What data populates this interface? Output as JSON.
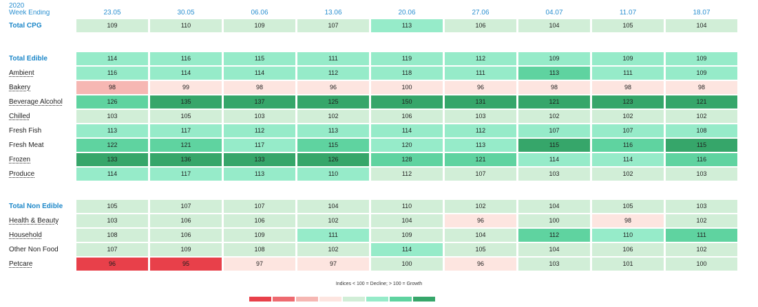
{
  "year_label": "2020",
  "week_label": "Week Ending",
  "note": "Indices < 100 = Decline; > 100 = Growth",
  "legend_colors": [
    "#e8404a",
    "#ee6a70",
    "#f6b7b3",
    "#fde5e0",
    "#d1eed7",
    "#96ebc9",
    "#5fd3a0",
    "#36a66a"
  ],
  "chart_data": {
    "type": "heatmap",
    "title": "",
    "x": [
      "23.05",
      "30.05",
      "06.06",
      "13.06",
      "20.06",
      "27.06",
      "04.07",
      "11.07",
      "18.07"
    ],
    "rows": [
      {
        "label": "Total CPG",
        "style": "total",
        "values": [
          109,
          110,
          109,
          107,
          113,
          106,
          104,
          105,
          104
        ]
      },
      {
        "label": "Total Edible",
        "style": "total",
        "values": [
          114,
          116,
          115,
          111,
          119,
          112,
          109,
          109,
          109
        ]
      },
      {
        "label": "Ambient",
        "style": "sub",
        "values": [
          116,
          114,
          114,
          112,
          118,
          111,
          113,
          111,
          109
        ]
      },
      {
        "label": "Bakery",
        "style": "sub",
        "values": [
          98,
          99,
          98,
          96,
          100,
          96,
          98,
          98,
          98
        ]
      },
      {
        "label": "Beverage Alcohol",
        "style": "sub",
        "values": [
          126,
          135,
          137,
          125,
          150,
          131,
          121,
          123,
          121
        ]
      },
      {
        "label": "Chilled",
        "style": "sub",
        "values": [
          103,
          105,
          103,
          102,
          106,
          103,
          102,
          102,
          102
        ]
      },
      {
        "label": "Fresh Fish",
        "style": "plain",
        "values": [
          113,
          117,
          112,
          113,
          114,
          112,
          107,
          107,
          108
        ]
      },
      {
        "label": "Fresh Meat",
        "style": "plain",
        "values": [
          122,
          121,
          117,
          115,
          120,
          113,
          115,
          116,
          115
        ]
      },
      {
        "label": "Frozen",
        "style": "sub",
        "values": [
          133,
          136,
          133,
          126,
          128,
          121,
          114,
          114,
          116
        ]
      },
      {
        "label": "Produce",
        "style": "sub",
        "values": [
          114,
          117,
          113,
          110,
          112,
          107,
          103,
          102,
          103
        ]
      },
      {
        "label": "Total Non Edible",
        "style": "total",
        "values": [
          105,
          107,
          107,
          104,
          110,
          102,
          104,
          105,
          103
        ]
      },
      {
        "label": "Health & Beauty",
        "style": "sub",
        "values": [
          103,
          106,
          106,
          102,
          104,
          96,
          100,
          98,
          102
        ]
      },
      {
        "label": "Household",
        "style": "sub",
        "values": [
          108,
          106,
          109,
          111,
          109,
          104,
          112,
          110,
          111
        ]
      },
      {
        "label": "Other Non Food",
        "style": "plain",
        "values": [
          107,
          109,
          108,
          102,
          114,
          105,
          104,
          106,
          102
        ]
      },
      {
        "label": "Petcare",
        "style": "sub",
        "values": [
          96,
          95,
          97,
          97,
          100,
          96,
          103,
          101,
          100
        ]
      }
    ],
    "cell_colors": [
      [
        "#d1eed7",
        "#d1eed7",
        "#d1eed7",
        "#d1eed7",
        "#96ebc9",
        "#d1eed7",
        "#d1eed7",
        "#d1eed7",
        "#d1eed7"
      ],
      [
        "#96ebc9",
        "#96ebc9",
        "#96ebc9",
        "#96ebc9",
        "#96ebc9",
        "#96ebc9",
        "#96ebc9",
        "#96ebc9",
        "#96ebc9"
      ],
      [
        "#96ebc9",
        "#96ebc9",
        "#96ebc9",
        "#96ebc9",
        "#96ebc9",
        "#96ebc9",
        "#5fd3a0",
        "#96ebc9",
        "#96ebc9"
      ],
      [
        "#f6b7b3",
        "#fde5e0",
        "#fde5e0",
        "#fde5e0",
        "#fde5e0",
        "#fde5e0",
        "#fde5e0",
        "#fde5e0",
        "#fde5e0"
      ],
      [
        "#5fd3a0",
        "#36a66a",
        "#36a66a",
        "#36a66a",
        "#36a66a",
        "#36a66a",
        "#36a66a",
        "#36a66a",
        "#36a66a"
      ],
      [
        "#d1eed7",
        "#d1eed7",
        "#d1eed7",
        "#d1eed7",
        "#d1eed7",
        "#d1eed7",
        "#d1eed7",
        "#d1eed7",
        "#d1eed7"
      ],
      [
        "#96ebc9",
        "#96ebc9",
        "#96ebc9",
        "#96ebc9",
        "#96ebc9",
        "#96ebc9",
        "#96ebc9",
        "#96ebc9",
        "#96ebc9"
      ],
      [
        "#5fd3a0",
        "#5fd3a0",
        "#96ebc9",
        "#5fd3a0",
        "#96ebc9",
        "#96ebc9",
        "#36a66a",
        "#5fd3a0",
        "#36a66a"
      ],
      [
        "#36a66a",
        "#36a66a",
        "#36a66a",
        "#36a66a",
        "#5fd3a0",
        "#5fd3a0",
        "#96ebc9",
        "#96ebc9",
        "#5fd3a0"
      ],
      [
        "#96ebc9",
        "#96ebc9",
        "#96ebc9",
        "#96ebc9",
        "#d1eed7",
        "#d1eed7",
        "#d1eed7",
        "#d1eed7",
        "#d1eed7"
      ],
      [
        "#d1eed7",
        "#d1eed7",
        "#d1eed7",
        "#d1eed7",
        "#d1eed7",
        "#d1eed7",
        "#d1eed7",
        "#d1eed7",
        "#d1eed7"
      ],
      [
        "#d1eed7",
        "#d1eed7",
        "#d1eed7",
        "#d1eed7",
        "#d1eed7",
        "#fde5e0",
        "#d1eed7",
        "#fde5e0",
        "#d1eed7"
      ],
      [
        "#d1eed7",
        "#d1eed7",
        "#d1eed7",
        "#96ebc9",
        "#d1eed7",
        "#d1eed7",
        "#5fd3a0",
        "#96ebc9",
        "#5fd3a0"
      ],
      [
        "#d1eed7",
        "#d1eed7",
        "#d1eed7",
        "#d1eed7",
        "#96ebc9",
        "#d1eed7",
        "#d1eed7",
        "#d1eed7",
        "#d1eed7"
      ],
      [
        "#e8404a",
        "#e8404a",
        "#fde5e0",
        "#fde5e0",
        "#d1eed7",
        "#fde5e0",
        "#d1eed7",
        "#d1eed7",
        "#d1eed7"
      ]
    ]
  }
}
